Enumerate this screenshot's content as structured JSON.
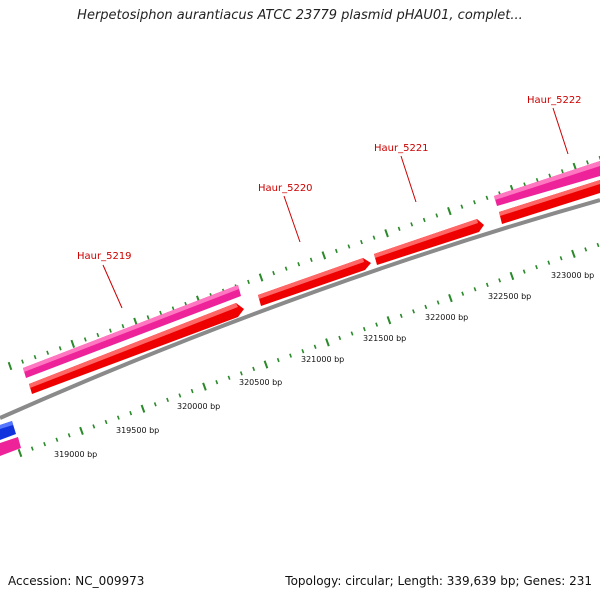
{
  "title": "Herpetosiphon aurantiacus ATCC 23779 plasmid pHAU01, complet...",
  "footer": {
    "accession": "Accession: NC_009973",
    "stats": "Topology: circular; Length: 339,639 bp; Genes: 231"
  },
  "colors": {
    "backbone": "#8a8a8a",
    "gene_red": "#ee0000",
    "gene_pink": "#ee2299",
    "gene_blue": "#1133dd",
    "tick_green": "#2a8a2a",
    "label_red": "#cc0000"
  },
  "gene_labels": [
    "Haur_5219",
    "Haur_5220",
    "Haur_5221",
    "Haur_5222"
  ],
  "position_labels": [
    "319000 bp",
    "319500 bp",
    "320000 bp",
    "320500 bp",
    "321000 bp",
    "321500 bp",
    "322000 bp",
    "322500 bp",
    "323000 bp"
  ]
}
